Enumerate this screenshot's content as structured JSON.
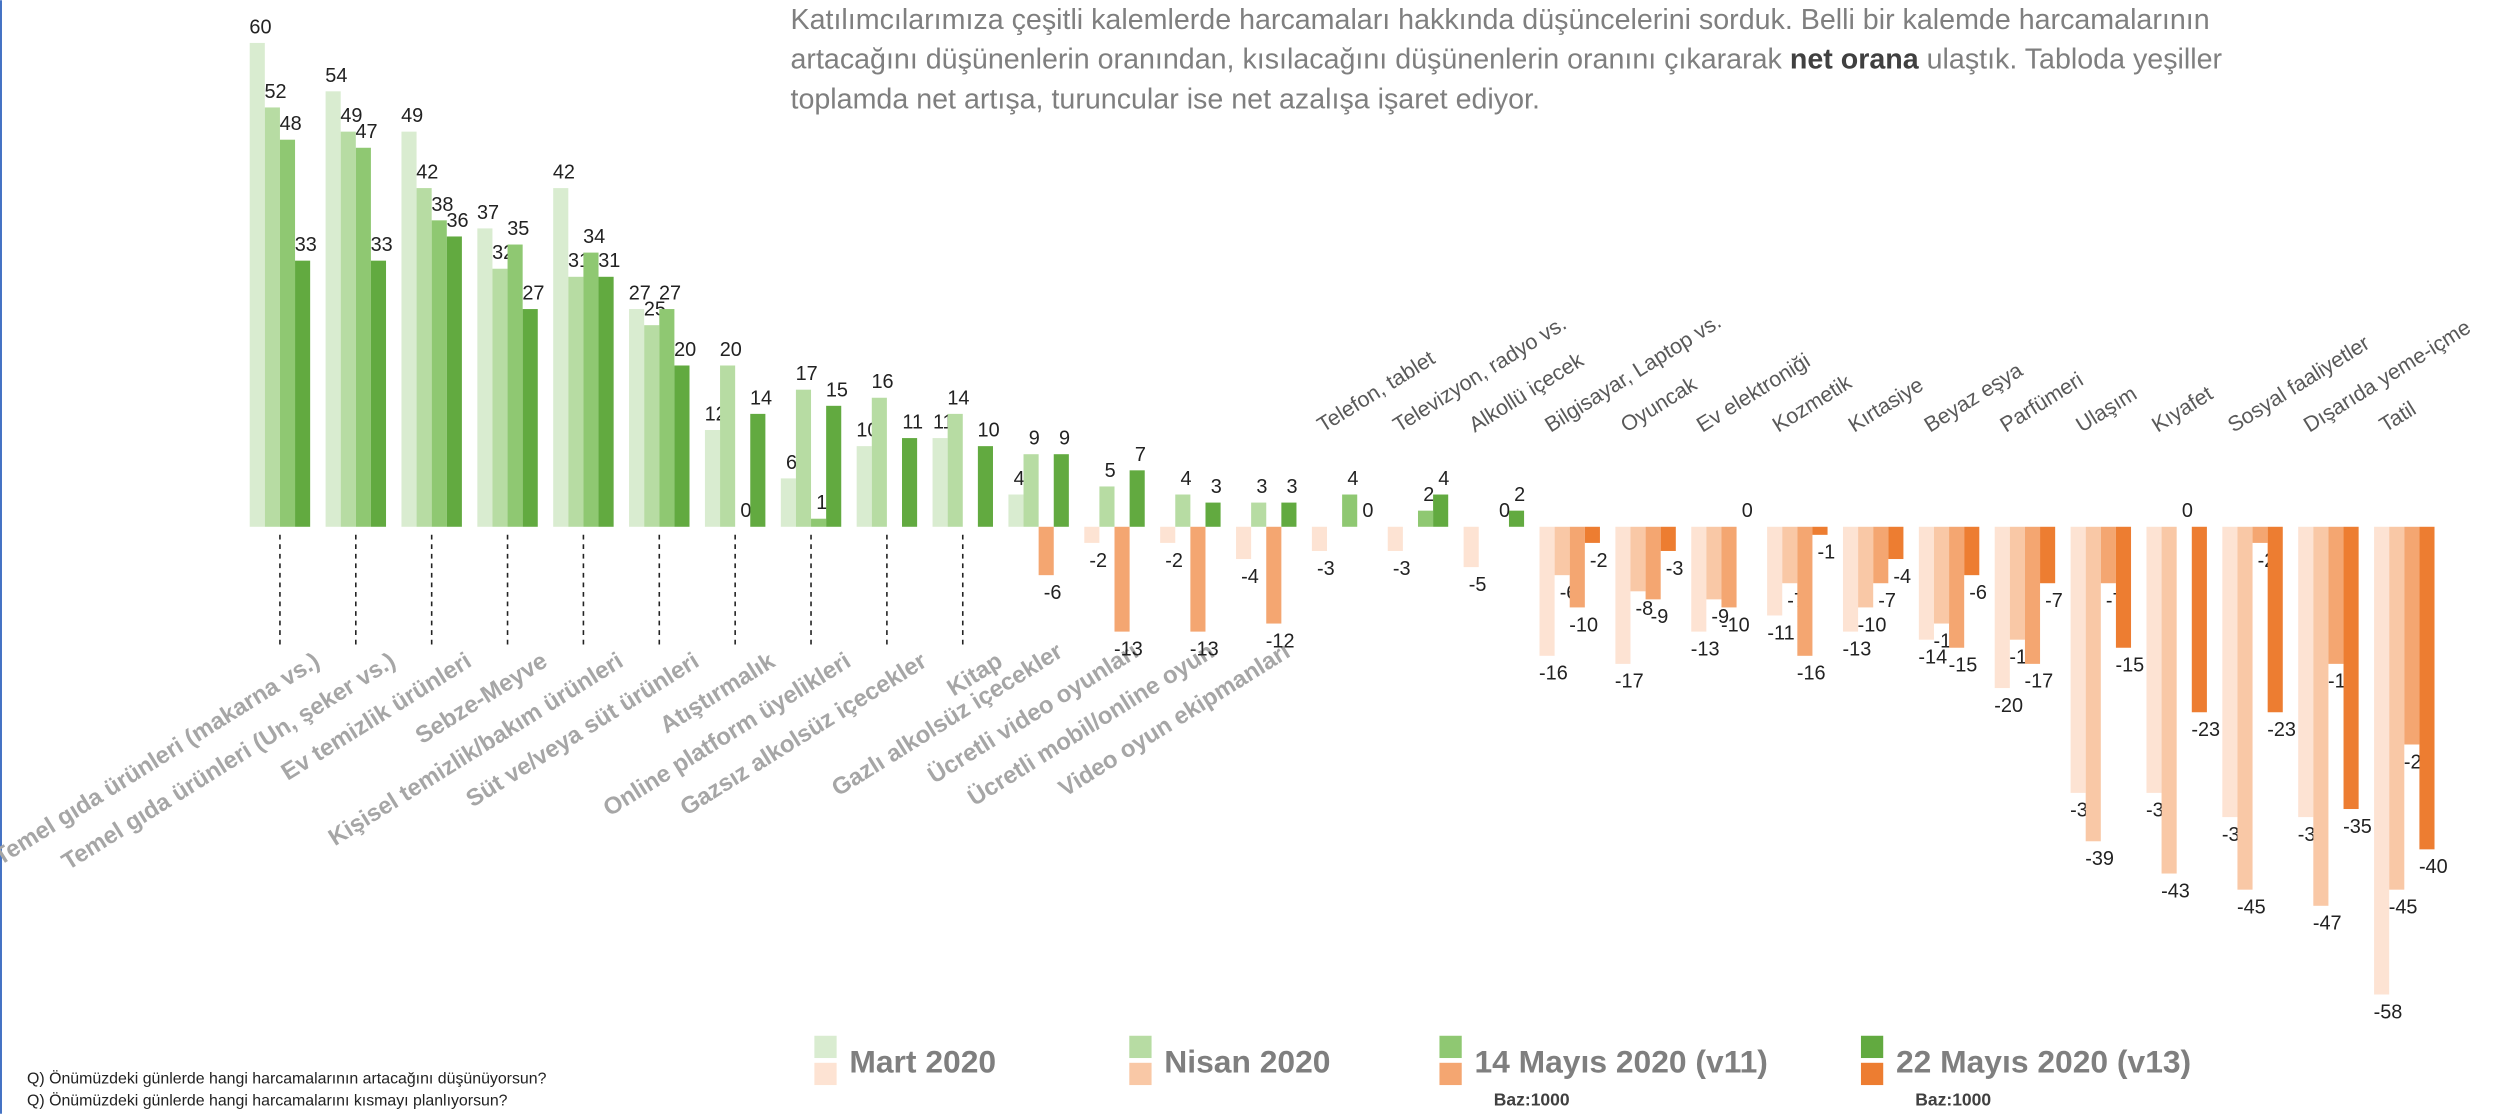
{
  "chart_data": {
    "type": "bar",
    "intro": [
      [
        "Katılımcılarımıza çeşitli kalemlerde harcamaları hakkında düşüncelerini sorduk. Belli bir kalemde harcamalarının"
      ],
      [
        "artacağını düşünenlerin oranından, kısılacağını düşünenlerin oranını çıkararak ",
        "net orana",
        " ulaştık. Tabloda yeşiller"
      ],
      [
        "toplamda net artışa, turuncular ise net azalışa işaret ediyor."
      ]
    ],
    "categories": [
      "Temel gıda ürünleri (makarna vs.)",
      "Temel gıda ürünleri (Un, şeker vs.)",
      "Ev temizlik ürünleri",
      "Sebze-Meyve",
      "Kişisel temizlik/bakım ürünleri",
      "Süt ve/veya süt ürünleri",
      "Atıştırmalık",
      "Online platform üyelikleri",
      "Gazsız alkolsüz içecekler",
      "Kitap",
      "Gazlı alkolsüz içecekler",
      "Ücretli video oyunları",
      "Ücretli mobil/online oyun",
      "Video oyun ekipmanları",
      "Telefon, tablet",
      "Televizyon, radyo vs.",
      "Alkollü içecek",
      "Bilgisayar,  Laptop vs.",
      "Oyuncak",
      "Ev elektroniği",
      "Kozmetik",
      "Kırtasiye",
      "Beyaz eşya",
      "Parfümeri",
      "Ulaşım",
      "Kıyafet",
      "Sosyal faaliyetler",
      "Dışarıda yeme-içme",
      "Tatil"
    ],
    "series": [
      {
        "name": "Mart 2020",
        "color": "#d9ecd0",
        "negative_color": "#fde3d3",
        "values": [
          60,
          54,
          49,
          37,
          42,
          27,
          12,
          6,
          10,
          11,
          4,
          -2,
          -2,
          -4,
          -3,
          -3,
          -5,
          -16,
          -17,
          -13,
          -11,
          -13,
          -14,
          -20,
          -33,
          -33,
          -36,
          -36,
          -58
        ]
      },
      {
        "name": "Nisan 2020",
        "color": "#b7dca3",
        "negative_color": "#f9c8a6",
        "values": [
          52,
          49,
          42,
          32,
          31,
          25,
          20,
          17,
          16,
          14,
          9,
          5,
          4,
          3,
          null,
          null,
          null,
          -6,
          -8,
          -9,
          -7,
          -10,
          -12,
          -14,
          -39,
          -43,
          -45,
          -47,
          -45
        ]
      },
      {
        "name": "14 Mayıs 2020 (v11)",
        "color": "#8fc872",
        "negative_color": "#f4a671",
        "base": "Baz:1000",
        "values": [
          48,
          47,
          38,
          35,
          34,
          27,
          0,
          1,
          null,
          null,
          -6,
          -13,
          -13,
          -12,
          4,
          2,
          0,
          -10,
          -9,
          -10,
          -16,
          -7,
          -15,
          -17,
          -7,
          0,
          -2,
          -17,
          -27
        ]
      },
      {
        "name": "22 Mayıs 2020 (v13)",
        "color": "#62aa40",
        "negative_color": "#ed7d31",
        "base": "Baz:1000",
        "values": [
          33,
          33,
          36,
          27,
          31,
          20,
          14,
          15,
          11,
          10,
          9,
          7,
          3,
          3,
          0,
          4,
          2,
          -2,
          -3,
          0,
          -1,
          -4,
          -6,
          -7,
          -15,
          -23,
          -23,
          -35,
          -40
        ]
      }
    ],
    "ylim": [
      -60,
      60
    ],
    "notes": [
      "Q) Önümüzdeki günlerde hangi harcamalarının artacağını düşünüyorsun?",
      "Q) Önümüzdeki günlerde hangi harcamalarını kısmayı planlıyorsun?"
    ]
  }
}
